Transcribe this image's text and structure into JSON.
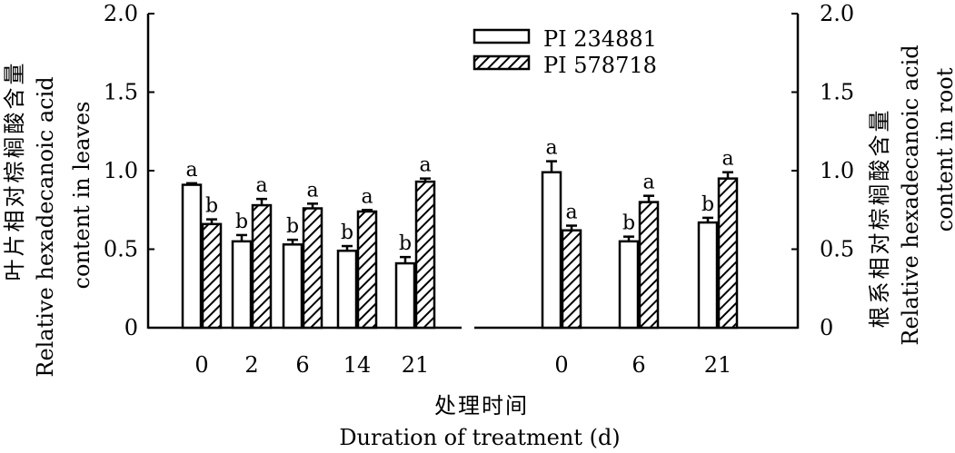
{
  "chart_data": {
    "type": "bar",
    "ylim": [
      0,
      2.0
    ],
    "yticks": [
      "0",
      "0.5",
      "1.0",
      "1.5",
      "2.0"
    ],
    "left_ylabel_cn": "叶片相对棕榈酸含量",
    "left_ylabel_en_1": "Relative hexadecanoic acid",
    "left_ylabel_en_2": "content in leaves",
    "right_ylabel_cn": "根系相对棕榈酸含量",
    "right_ylabel_en_1": "Relative hexadecanoic acid",
    "right_ylabel_en_2": "content in root",
    "xlabel_cn": "处理时间",
    "xlabel_en": "Duration of treatment (d)",
    "legend": [
      "PI 234881",
      "PI 578718"
    ],
    "legend_placement": "top-center",
    "grid": false,
    "panels": [
      {
        "name": "leaves",
        "categories": [
          "0",
          "2",
          "6",
          "14",
          "21"
        ],
        "series": [
          {
            "name": "PI 234881",
            "values": [
              0.91,
              0.55,
              0.53,
              0.49,
              0.41
            ],
            "errors": [
              0.01,
              0.04,
              0.03,
              0.03,
              0.04
            ],
            "letters": [
              "a",
              "b",
              "b",
              "b",
              "b"
            ]
          },
          {
            "name": "PI 578718",
            "values": [
              0.66,
              0.78,
              0.76,
              0.74,
              0.93
            ],
            "errors": [
              0.03,
              0.04,
              0.03,
              0.01,
              0.02
            ],
            "letters": [
              "b",
              "a",
              "a",
              "a",
              "a"
            ]
          }
        ]
      },
      {
        "name": "root",
        "categories": [
          "0",
          "6",
          "21"
        ],
        "series": [
          {
            "name": "PI 234881",
            "values": [
              0.99,
              0.55,
              0.67
            ],
            "errors": [
              0.07,
              0.03,
              0.03
            ],
            "letters": [
              "a",
              "b",
              "b"
            ]
          },
          {
            "name": "PI 578718",
            "values": [
              0.62,
              0.8,
              0.95
            ],
            "errors": [
              0.03,
              0.04,
              0.04
            ],
            "letters": [
              "a",
              "a",
              "a"
            ]
          }
        ]
      }
    ]
  }
}
